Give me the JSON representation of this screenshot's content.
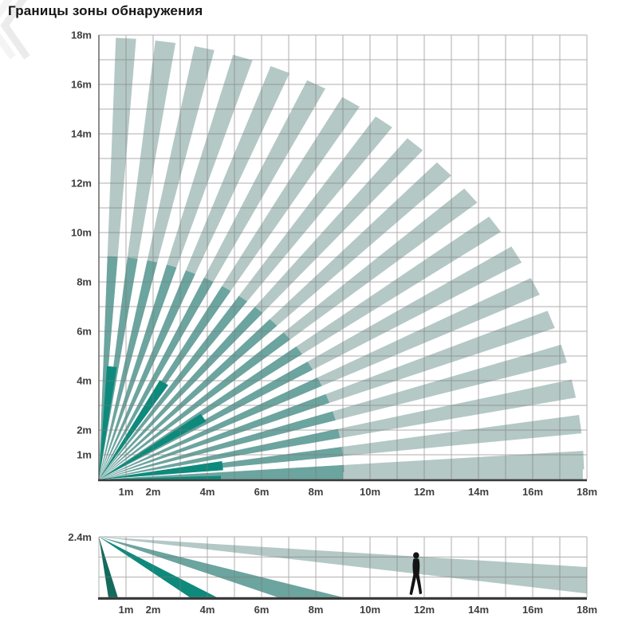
{
  "page": {
    "title": "Границы зоны обнаружения"
  },
  "colors": {
    "long_zone": "#b4c8c6",
    "mid_zone": "#6ca49f",
    "short_zone": "#0e8a7c",
    "steep_zone": "#146a5c",
    "grid": "#7d7a76",
    "axis": "#3a3a3a",
    "label": "#3f3f3f",
    "person": "#141414",
    "watermark": "#ebebeb"
  },
  "chart_data": [
    {
      "type": "area",
      "name": "detection-zone-top-view",
      "view": "top (plan) view of PIR detection fan",
      "xlim": [
        0,
        18
      ],
      "ylim": [
        0,
        18
      ],
      "grid_step_m": 1,
      "x_tick_values": [
        1,
        2,
        4,
        6,
        8,
        10,
        12,
        14,
        16,
        18
      ],
      "x_tick_labels": [
        "1m",
        "2m",
        "4m",
        "6m",
        "8m",
        "10m",
        "12m",
        "14m",
        "16m",
        "18m"
      ],
      "y_tick_values": [
        18,
        16,
        14,
        12,
        10,
        8,
        6,
        4,
        2,
        1
      ],
      "y_tick_labels": [
        "18m",
        "16m",
        "14m",
        "12m",
        "10m",
        "8m",
        "6m",
        "4m",
        "2m",
        "1m"
      ],
      "long_range_m": 17.9,
      "mid_range_m": 9.05,
      "short_range_m": 4.6,
      "beam_count": 19,
      "beam_first_angle_deg": 3.2,
      "beam_angle_step_deg": 4.683,
      "beam_width_deg": 2.4,
      "short_zone_angles_deg": [
        6,
        31.5,
        57,
        83
      ],
      "short_zone_width_deg": 4.6,
      "floor_beam": {
        "half_width_slope": 0.032,
        "segments": [
          {
            "zone": "short_zone",
            "from_m": 0,
            "to_m": 4.5
          },
          {
            "zone": "mid_zone",
            "from_m": 4.5,
            "to_m": 9.0
          },
          {
            "zone": "long_zone",
            "from_m": 9.0,
            "to_m": 17.85
          }
        ]
      }
    },
    {
      "type": "area",
      "name": "detection-zone-side-view",
      "view": "side (elevation) view with sensor mounted at 2.4 m",
      "mount_height_m": 2.4,
      "mount_height_label": "2.4m",
      "xlim": [
        0,
        18
      ],
      "row_lines_m": [
        0,
        0.8,
        1.6,
        2.4
      ],
      "x_tick_values": [
        1,
        2,
        4,
        6,
        8,
        10,
        12,
        14,
        16,
        18
      ],
      "x_tick_labels": [
        "1m",
        "2m",
        "4m",
        "6m",
        "8m",
        "10m",
        "12m",
        "14m",
        "16m",
        "18m"
      ],
      "beams": [
        {
          "zone": "steep_zone",
          "ground_from_m": 0.35,
          "ground_to_m": 0.7
        },
        {
          "zone": "short_zone",
          "ground_from_m": 3.35,
          "ground_to_m": 4.35
        },
        {
          "zone": "mid_zone",
          "ground_from_m": 6.6,
          "ground_to_m": 9.0
        },
        {
          "zone": "long_zone",
          "far_x_m": 18,
          "far_top_m": 1.2,
          "far_bottom_m": 0.15
        }
      ],
      "person_x_m": 11.7,
      "person_height_m": 1.8
    }
  ]
}
